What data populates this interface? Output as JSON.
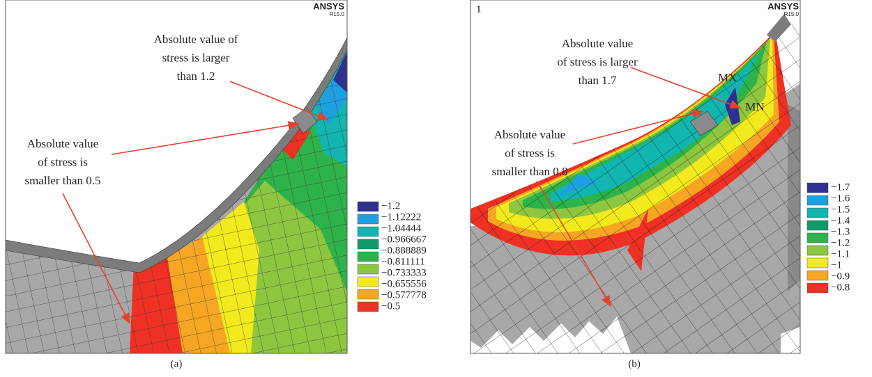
{
  "panels": [
    {
      "brand": "ANSYS",
      "version": "R15.0",
      "annotations": [
        {
          "lines": [
            "Absolute value of",
            "stress is larger",
            "than 1.2"
          ]
        },
        {
          "lines": [
            "Absolute value",
            "of stress is",
            "smaller than 0.5"
          ]
        }
      ],
      "legend": {
        "labels": [
          "−1.2",
          "−1.12222",
          "−1.04444",
          "−0.966667",
          "−0.888889",
          "−0.811111",
          "−0.733333",
          "−0.655556",
          "−0.577778",
          "−0.5"
        ],
        "colors": [
          "#2e3192",
          "#1ea0e0",
          "#12b5b0",
          "#109a6a",
          "#2eb34a",
          "#8dc63f",
          "#f2ea1c",
          "#f6a623",
          "#ee3124"
        ]
      },
      "caption": "(a)"
    },
    {
      "brand": "ANSYS",
      "version": "R15.0",
      "window_number": "1",
      "max_label": "MX",
      "min_label": "MN",
      "annotations": [
        {
          "lines": [
            "Absolute value",
            "of stress is larger",
            "than 1.7"
          ]
        },
        {
          "lines": [
            "Absolute value",
            "of stress is",
            "smaller than 0.8"
          ]
        }
      ],
      "legend": {
        "labels": [
          "−1.7",
          "−1.6",
          "−1.5",
          "−1.4",
          "−1.3",
          "−1.2",
          "−1.1",
          "−1",
          "−0.9",
          "−0.8"
        ],
        "colors": [
          "#2e3192",
          "#1ea0e0",
          "#12b5b0",
          "#109a6a",
          "#2eb34a",
          "#8dc63f",
          "#f2ea1c",
          "#f6a623",
          "#ee3124"
        ]
      },
      "caption": "(b)"
    }
  ]
}
